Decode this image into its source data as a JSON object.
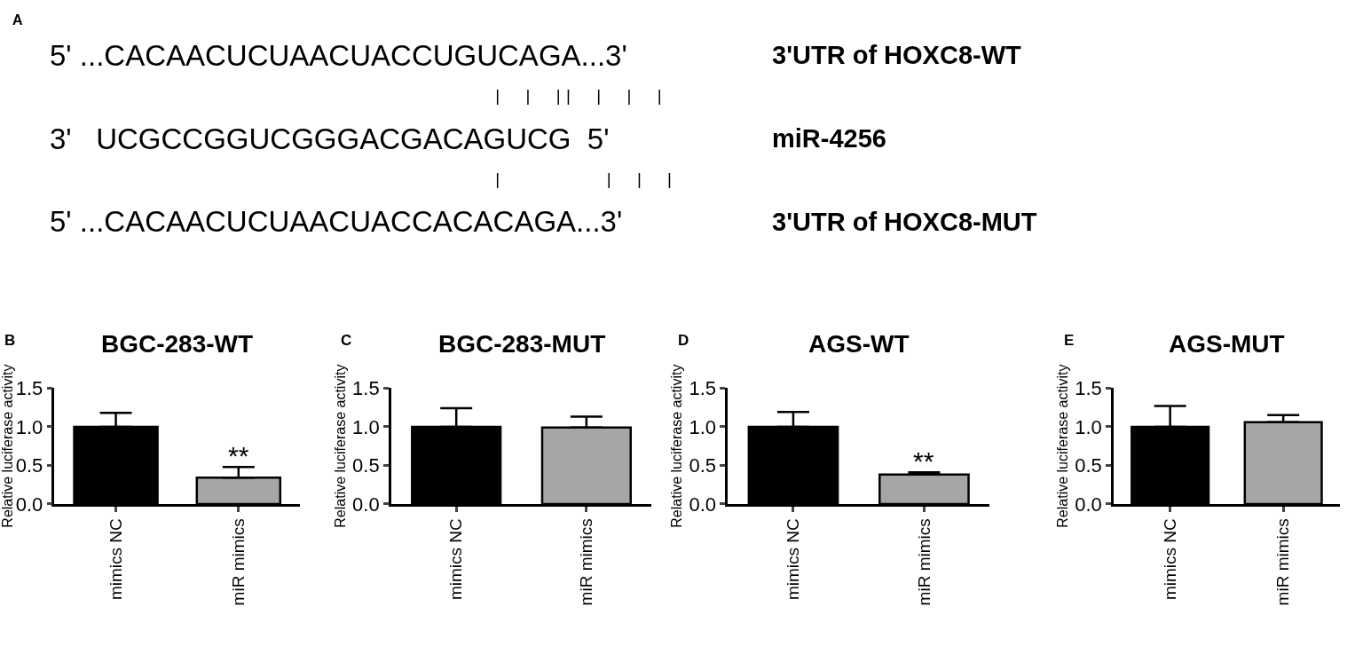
{
  "chart_data": [
    {
      "type": "other",
      "annotations": [
        "A",
        "5' ...CACAACUCUAACUACCUGUCAGA...3'",
        "3'UTR of HOXC8-WT",
        "|  |  ||  |  |  |",
        "3'   UCGCCGGUCGGGACGACAGUCG  5'",
        "miR-4256",
        "|          |  |  |",
        "5' ...CACAACUCUAACUACCACACAGA...3'",
        "3'UTR of HOXC8-MUT"
      ]
    },
    {
      "type": "bar",
      "title": "BGC-283-WT",
      "ylabel": "Relative luciferase activity",
      "categories": [
        "mimics NC",
        "miR mimics"
      ],
      "values": [
        1.0,
        0.34
      ],
      "colors": [
        "#000000",
        "#a6a6a6"
      ],
      "errors": [
        [
          1.0,
          1.18
        ],
        [
          0.34,
          0.48
        ]
      ],
      "ylim": [
        0,
        1.5
      ],
      "yticks": [
        {
          "value": 0,
          "label": "0.0"
        },
        {
          "value": 0.5,
          "label": "0.5"
        },
        {
          "value": 1,
          "label": "1.0"
        },
        {
          "value": 1.5,
          "label": "1.5"
        }
      ],
      "annotations": [
        "B",
        {
          "text": "**",
          "x": "miR mimics",
          "y": 0.48
        }
      ]
    },
    {
      "type": "bar",
      "title": "BGC-283-MUT",
      "ylabel": "Relative luciferase activity",
      "categories": [
        "mimics NC",
        "miR mimics"
      ],
      "values": [
        1.0,
        0.99
      ],
      "colors": [
        "#000000",
        "#a6a6a6"
      ],
      "errors": [
        [
          1.0,
          1.24
        ],
        [
          0.99,
          1.13
        ]
      ],
      "ylim": [
        0,
        1.5
      ],
      "yticks": [
        {
          "value": 0,
          "label": "0.0"
        },
        {
          "value": 0.5,
          "label": "0.5"
        },
        {
          "value": 1,
          "label": "1.0"
        },
        {
          "value": 1.5,
          "label": "1.5"
        }
      ],
      "annotations": [
        "C"
      ]
    },
    {
      "type": "bar",
      "title": "AGS-WT",
      "ylabel": "Relative luciferase activity",
      "categories": [
        "mimics NC",
        "miR mimics"
      ],
      "values": [
        1.0,
        0.38
      ],
      "colors": [
        "#000000",
        "#a6a6a6"
      ],
      "errors": [
        [
          1.0,
          1.19
        ],
        [
          0.38,
          0.41
        ]
      ],
      "ylim": [
        0,
        1.5
      ],
      "yticks": [
        {
          "value": 0,
          "label": "0.0"
        },
        {
          "value": 0.5,
          "label": "0.5"
        },
        {
          "value": 1,
          "label": "1.0"
        },
        {
          "value": 1.5,
          "label": "1.5"
        }
      ],
      "annotations": [
        "D",
        {
          "text": "**",
          "x": "miR mimics",
          "y": 0.41
        }
      ]
    },
    {
      "type": "bar",
      "title": "AGS-MUT",
      "ylabel": "Relative luciferase activity",
      "categories": [
        "mimics NC",
        "miR mimics"
      ],
      "values": [
        1.0,
        1.06
      ],
      "colors": [
        "#000000",
        "#a6a6a6"
      ],
      "errors": [
        [
          1.0,
          1.27
        ],
        [
          1.06,
          1.15
        ]
      ],
      "ylim": [
        0,
        1.5
      ],
      "yticks": [
        {
          "value": 0,
          "label": "0.0"
        },
        {
          "value": 0.5,
          "label": "0.5"
        },
        {
          "value": 1,
          "label": "1.0"
        },
        {
          "value": 1.5,
          "label": "1.5"
        }
      ],
      "annotations": [
        "E"
      ]
    }
  ]
}
